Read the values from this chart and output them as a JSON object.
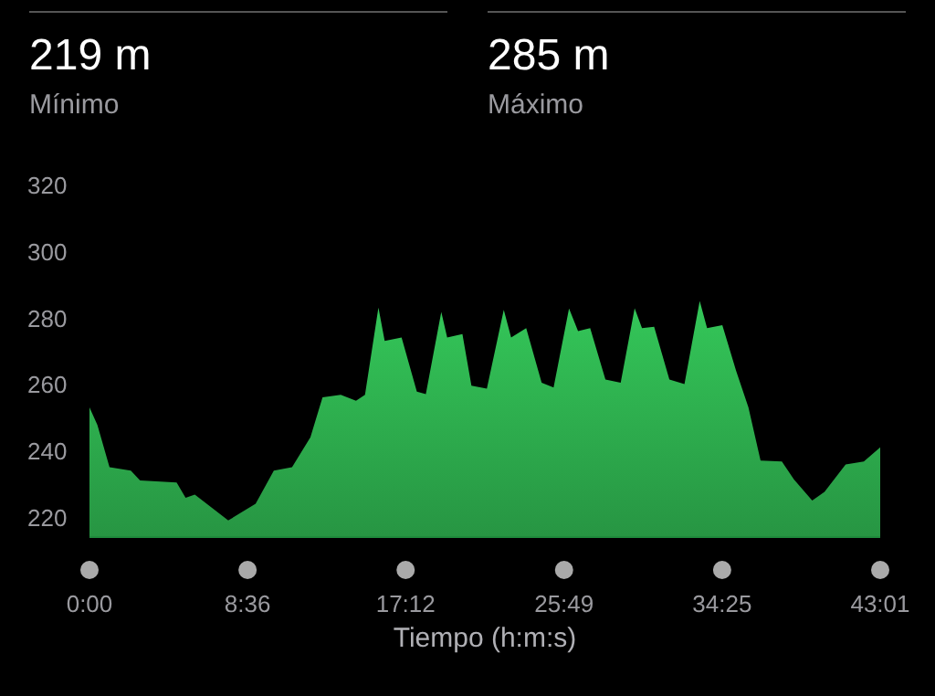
{
  "chart_data": {
    "type": "area",
    "xlabel": "Tiempo (h:m:s)",
    "annotations": [
      "219 m",
      "Mínimo",
      "285 m",
      "Máximo"
    ],
    "x": [
      0,
      0.43,
      1.09,
      2.25,
      2.75,
      4.74,
      5.23,
      5.73,
      7.55,
      9.04,
      10.03,
      11.02,
      12.02,
      12.68,
      13.67,
      14.5,
      14.99,
      15.72,
      16.06,
      16.98,
      17.81,
      18.3,
      19.14,
      19.46,
      20.29,
      20.78,
      21.62,
      22.54,
      22.94,
      23.76,
      24.6,
      25.25,
      26.09,
      26.58,
      27.24,
      28.07,
      28.9,
      29.66,
      30.06,
      30.72,
      31.55,
      32.37,
      33.2,
      33.6,
      34.43,
      35.18,
      35.85,
      36.51,
      37.67,
      38.33,
      39.32,
      39.99,
      41.14,
      42.13,
      43.02
    ],
    "series": [
      {
        "color": "#34c759",
        "values": [
          253,
          247.7,
          235,
          234,
          231,
          230.4,
          225.8,
          226.8,
          219,
          224,
          234,
          235,
          244,
          256,
          256.8,
          255,
          256.8,
          283,
          273,
          274,
          257.7,
          257,
          281.7,
          274,
          275,
          259.5,
          258.6,
          282.3,
          274,
          276.8,
          260.4,
          259,
          282.7,
          275.9,
          276.8,
          261.4,
          260.4,
          282.8,
          276.8,
          277.2,
          261.4,
          260,
          285,
          276.8,
          277.7,
          264,
          253,
          237,
          236.7,
          231.3,
          225,
          227.6,
          235.8,
          236.7,
          241
        ]
      }
    ],
    "xlim": [
      0,
      43.02
    ],
    "xticks": [
      {
        "value": 0,
        "label": "0:00"
      },
      {
        "value": 8.6,
        "label": "8:36"
      },
      {
        "value": 17.2,
        "label": "17:12"
      },
      {
        "value": 25.82,
        "label": "25:49"
      },
      {
        "value": 34.42,
        "label": "34:25"
      },
      {
        "value": 43.02,
        "label": "43:01"
      }
    ],
    "ylim": [
      214,
      320
    ],
    "yticks": [
      220,
      240,
      260,
      280,
      300,
      320
    ],
    "grid": false,
    "legend": false
  }
}
